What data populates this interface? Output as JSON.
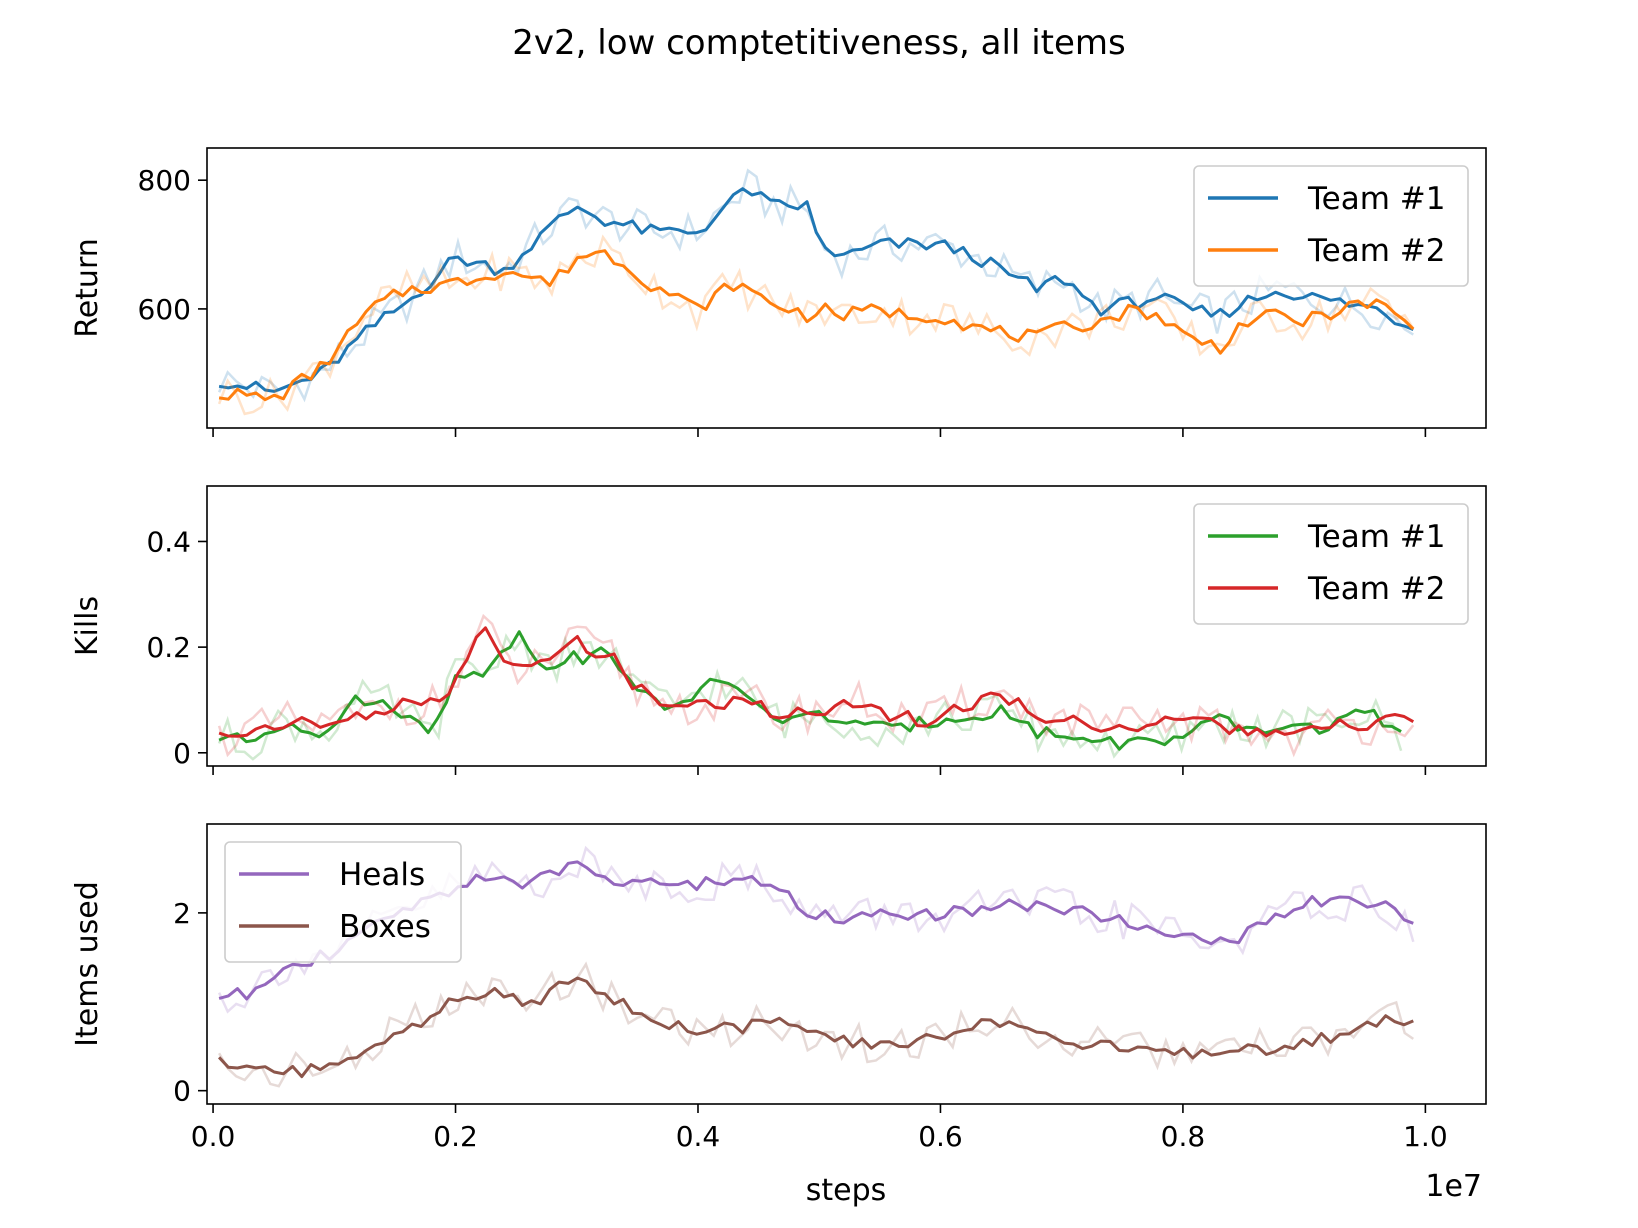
{
  "figure": {
    "title": "2v2, low comptetitiveness, all items",
    "xlabel": "steps",
    "x_offset_text": "1e7"
  },
  "chart_data": [
    {
      "type": "line",
      "name": "return",
      "ylabel": "Return",
      "xlim": [
        -0.05,
        10.5
      ],
      "ylim": [
        415,
        850
      ],
      "x_scale_note": "steps ×1e7 (x values given in 1e6)",
      "yticks": [
        600,
        800
      ],
      "legend_position": "top-right",
      "raw_alpha": 0.22,
      "series": [
        {
          "name": "Team #1",
          "color": "#1f77b4",
          "x": [
            0.05,
            0.5,
            0.9,
            1.3,
            1.6,
            2.0,
            2.4,
            2.8,
            3.0,
            3.2,
            3.4,
            3.6,
            4.0,
            4.3,
            4.4,
            4.6,
            4.9,
            5.0,
            5.2,
            5.5,
            5.7,
            6.0,
            6.3,
            6.6,
            6.8,
            7.0,
            7.3,
            7.6,
            7.8,
            8.0,
            8.3,
            8.5,
            8.8,
            9.0,
            9.3,
            9.6,
            9.9
          ],
          "y": [
            490,
            470,
            500,
            570,
            610,
            680,
            660,
            730,
            760,
            740,
            730,
            720,
            720,
            770,
            790,
            760,
            760,
            700,
            680,
            700,
            700,
            700,
            680,
            650,
            630,
            650,
            600,
            610,
            620,
            600,
            590,
            610,
            630,
            620,
            610,
            600,
            570
          ]
        },
        {
          "name": "Team #2",
          "color": "#ff7f0e",
          "x": [
            0.05,
            0.5,
            0.9,
            1.3,
            1.6,
            2.0,
            2.4,
            2.8,
            3.0,
            3.2,
            3.4,
            3.6,
            4.0,
            4.3,
            4.6,
            4.9,
            5.0,
            5.2,
            5.5,
            5.7,
            6.0,
            6.3,
            6.6,
            6.8,
            7.0,
            7.3,
            7.6,
            7.8,
            8.0,
            8.3,
            8.5,
            8.8,
            9.0,
            9.3,
            9.6,
            9.9
          ],
          "y": [
            470,
            460,
            510,
            600,
            630,
            640,
            660,
            640,
            680,
            690,
            670,
            640,
            600,
            640,
            610,
            590,
            600,
            590,
            600,
            590,
            590,
            570,
            560,
            555,
            570,
            580,
            600,
            590,
            560,
            540,
            580,
            590,
            580,
            600,
            610,
            570
          ]
        }
      ]
    },
    {
      "type": "line",
      "name": "kills",
      "ylabel": "Kills",
      "xlim": [
        -0.05,
        10.5
      ],
      "ylim": [
        -0.025,
        0.505
      ],
      "yticks": [
        0.0,
        0.2,
        0.4
      ],
      "legend_position": "top-right",
      "raw_alpha": 0.22,
      "series": [
        {
          "name": "Team #1",
          "color": "#2ca02c",
          "x": [
            0.05,
            0.3,
            0.6,
            0.9,
            1.2,
            1.5,
            1.8,
            2.0,
            2.3,
            2.5,
            2.7,
            3.0,
            3.3,
            3.5,
            3.8,
            4.1,
            4.4,
            4.7,
            5.0,
            5.3,
            5.6,
            5.9,
            6.2,
            6.5,
            6.8,
            7.1,
            7.4,
            7.7,
            8.0,
            8.3,
            8.6,
            8.9,
            9.2,
            9.5,
            9.8
          ],
          "y": [
            0.03,
            0.02,
            0.06,
            0.04,
            0.1,
            0.09,
            0.03,
            0.15,
            0.16,
            0.23,
            0.17,
            0.18,
            0.19,
            0.11,
            0.09,
            0.13,
            0.11,
            0.06,
            0.07,
            0.06,
            0.04,
            0.06,
            0.07,
            0.08,
            0.04,
            0.03,
            0.02,
            0.02,
            0.03,
            0.06,
            0.04,
            0.05,
            0.05,
            0.08,
            0.03
          ]
        },
        {
          "name": "Team #2",
          "color": "#d62728",
          "x": [
            0.05,
            0.3,
            0.6,
            0.9,
            1.2,
            1.5,
            1.8,
            2.0,
            2.2,
            2.5,
            2.7,
            3.0,
            3.3,
            3.5,
            3.8,
            4.1,
            4.4,
            4.7,
            5.0,
            5.3,
            5.6,
            5.9,
            6.2,
            6.5,
            6.8,
            7.1,
            7.4,
            7.7,
            8.0,
            8.3,
            8.6,
            8.9,
            9.2,
            9.5,
            9.9
          ],
          "y": [
            0.03,
            0.04,
            0.06,
            0.05,
            0.07,
            0.09,
            0.09,
            0.13,
            0.24,
            0.15,
            0.17,
            0.21,
            0.18,
            0.12,
            0.09,
            0.09,
            0.1,
            0.07,
            0.08,
            0.1,
            0.07,
            0.06,
            0.09,
            0.11,
            0.07,
            0.06,
            0.05,
            0.05,
            0.06,
            0.05,
            0.04,
            0.03,
            0.05,
            0.05,
            0.07
          ]
        }
      ]
    },
    {
      "type": "line",
      "name": "items",
      "ylabel": "Items used",
      "xlim": [
        -0.05,
        10.5
      ],
      "ylim": [
        -0.15,
        3.0
      ],
      "yticks": [
        0,
        2
      ],
      "legend_position": "top-left",
      "raw_alpha": 0.22,
      "series": [
        {
          "name": "Heals",
          "color": "#9467bd",
          "x": [
            0.05,
            0.3,
            0.6,
            0.9,
            1.2,
            1.5,
            1.8,
            2.0,
            2.3,
            2.6,
            3.0,
            3.3,
            3.6,
            4.0,
            4.3,
            4.6,
            4.9,
            5.2,
            5.5,
            5.8,
            6.1,
            6.4,
            6.7,
            7.0,
            7.3,
            7.6,
            7.9,
            8.2,
            8.5,
            8.8,
            9.1,
            9.4,
            9.7,
            9.9
          ],
          "y": [
            1.05,
            1.1,
            1.45,
            1.5,
            1.7,
            2.0,
            2.15,
            2.3,
            2.45,
            2.3,
            2.55,
            2.4,
            2.35,
            2.3,
            2.4,
            2.35,
            2.0,
            1.95,
            2.0,
            1.95,
            2.0,
            2.05,
            2.1,
            2.05,
            1.95,
            1.9,
            1.8,
            1.65,
            1.75,
            1.95,
            2.15,
            2.1,
            2.05,
            1.85
          ]
        },
        {
          "name": "Boxes",
          "color": "#8c564b",
          "x": [
            0.05,
            0.3,
            0.6,
            0.9,
            1.2,
            1.5,
            1.8,
            2.0,
            2.3,
            2.6,
            3.0,
            3.3,
            3.6,
            4.0,
            4.3,
            4.6,
            4.9,
            5.2,
            5.5,
            5.8,
            6.1,
            6.4,
            6.7,
            7.0,
            7.3,
            7.6,
            7.9,
            8.2,
            8.5,
            8.8,
            9.1,
            9.4,
            9.7,
            9.9
          ],
          "y": [
            0.3,
            0.2,
            0.25,
            0.2,
            0.45,
            0.65,
            0.85,
            1.0,
            1.1,
            0.95,
            1.35,
            1.0,
            0.85,
            0.65,
            0.7,
            0.8,
            0.65,
            0.55,
            0.5,
            0.55,
            0.65,
            0.8,
            0.75,
            0.55,
            0.5,
            0.45,
            0.45,
            0.4,
            0.45,
            0.5,
            0.55,
            0.7,
            0.8,
            0.75
          ]
        }
      ]
    }
  ],
  "xticks": [
    {
      "value": 0.0,
      "label": "0.0"
    },
    {
      "value": 2.0,
      "label": "0.2"
    },
    {
      "value": 4.0,
      "label": "0.4"
    },
    {
      "value": 6.0,
      "label": "0.6"
    },
    {
      "value": 8.0,
      "label": "0.8"
    },
    {
      "value": 10.0,
      "label": "1.0"
    }
  ]
}
